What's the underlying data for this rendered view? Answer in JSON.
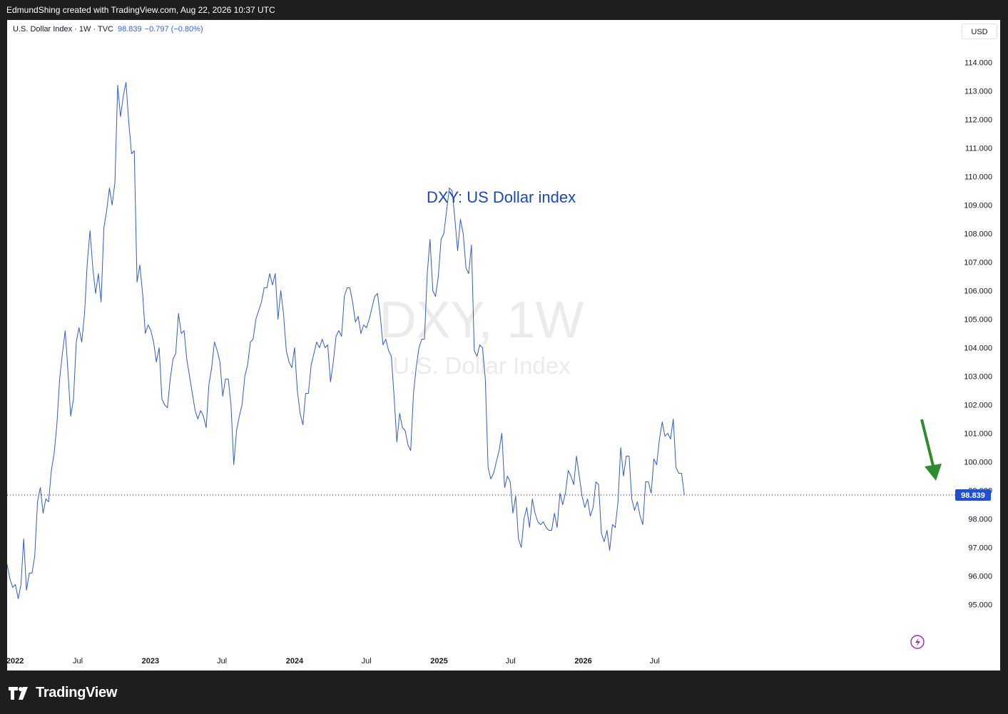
{
  "header": {
    "attribution": "EdmundShing created with TradingView.com, Aug 22, 2026 10:37 UTC"
  },
  "legend": {
    "symbol": "U.S. Dollar Index · 1W · TVC",
    "last": "98.839",
    "change": "−0.797 (−0.80%)"
  },
  "currency_button": "USD",
  "watermark": {
    "main": "DXY, 1W",
    "sub": "U.S. Dollar Index"
  },
  "annotation": {
    "text": "DXY: US Dollar index",
    "color": "#1a47c5"
  },
  "arrow": {
    "color": "#2e8b2e"
  },
  "branding": {
    "name": "TradingView"
  },
  "colors": {
    "line": "#2f5bd3",
    "last_badge": "#1c4fd6",
    "flash": "#9c27b0"
  },
  "chart_data": {
    "type": "line",
    "title": "U.S. Dollar Index",
    "timeframe": "1W",
    "x_start": "2022-01-03",
    "x_step_days": 7,
    "x_ticks": [
      {
        "label": "2022",
        "date": "2022-01-01",
        "bold": true
      },
      {
        "label": "Jul",
        "date": "2022-07-01",
        "bold": false
      },
      {
        "label": "2023",
        "date": "2023-01-01",
        "bold": true
      },
      {
        "label": "Jul",
        "date": "2023-07-01",
        "bold": false
      },
      {
        "label": "2024",
        "date": "2024-01-01",
        "bold": true
      },
      {
        "label": "Jul",
        "date": "2024-07-01",
        "bold": false
      },
      {
        "label": "2025",
        "date": "2025-01-01",
        "bold": true
      },
      {
        "label": "Jul",
        "date": "2025-07-01",
        "bold": false
      },
      {
        "label": "2026",
        "date": "2026-01-01",
        "bold": true
      },
      {
        "label": "Jul",
        "date": "2026-07-01",
        "bold": false
      }
    ],
    "y_ticks": [
      "95.000",
      "96.000",
      "97.000",
      "98.000",
      "99.000",
      "100.000",
      "101.000",
      "102.000",
      "103.000",
      "104.000",
      "105.000",
      "106.000",
      "107.000",
      "108.000",
      "109.000",
      "110.000",
      "111.000",
      "112.000",
      "113.000",
      "114.000"
    ],
    "y_range": [
      93.8,
      115.2
    ],
    "last_value": 98.839,
    "values": [
      96.4,
      95.9,
      95.6,
      95.7,
      95.2,
      95.7,
      97.3,
      95.5,
      96.1,
      96.1,
      96.7,
      98.6,
      99.1,
      98.2,
      98.7,
      98.6,
      99.7,
      100.3,
      101.3,
      102.9,
      103.8,
      104.6,
      103.2,
      101.6,
      102.2,
      104.2,
      104.7,
      104.2,
      105.2,
      107.0,
      108.1,
      106.8,
      105.9,
      106.6,
      105.6,
      108.2,
      108.8,
      109.6,
      109.0,
      109.8,
      113.2,
      112.1,
      112.8,
      113.3,
      111.9,
      110.8,
      110.9,
      106.3,
      106.9,
      105.9,
      104.5,
      104.8,
      104.6,
      104.2,
      103.5,
      104.0,
      102.2,
      102.0,
      101.9,
      102.9,
      103.6,
      103.8,
      105.2,
      104.5,
      104.6,
      103.6,
      103.0,
      102.4,
      101.8,
      101.5,
      101.8,
      101.6,
      101.2,
      102.7,
      103.3,
      104.2,
      103.9,
      103.5,
      102.3,
      102.9,
      102.9,
      102.0,
      99.9,
      101.1,
      101.6,
      102.0,
      103.0,
      103.4,
      104.2,
      104.3,
      105.0,
      105.3,
      105.6,
      106.1,
      106.1,
      106.6,
      106.2,
      106.6,
      105.0,
      106.0,
      105.2,
      103.9,
      103.5,
      103.3,
      104.0,
      102.5,
      101.7,
      101.3,
      102.4,
      102.4,
      103.4,
      103.8,
      104.2,
      104.0,
      104.3,
      104.0,
      104.1,
      102.8,
      103.5,
      104.4,
      104.6,
      104.4,
      105.8,
      106.1,
      106.1,
      105.6,
      104.9,
      105.1,
      104.5,
      104.8,
      104.7,
      105.0,
      105.4,
      105.8,
      105.9,
      105.1,
      104.1,
      104.3,
      103.9,
      103.7,
      102.3,
      100.7,
      101.7,
      101.2,
      101.1,
      100.6,
      100.4,
      102.4,
      103.3,
      104.0,
      104.3,
      104.3,
      106.6,
      107.8,
      106.0,
      105.8,
      106.5,
      107.8,
      108.0,
      108.8,
      109.6,
      109.5,
      108.5,
      107.4,
      108.5,
      108.0,
      106.8,
      106.6,
      107.6,
      103.9,
      103.7,
      104.1,
      104.0,
      102.9,
      99.8,
      99.4,
      99.6,
      100.0,
      100.4,
      101.0,
      99.1,
      99.5,
      99.3,
      98.2,
      98.8,
      97.3,
      97.0,
      98.0,
      98.4,
      97.7,
      98.7,
      98.2,
      97.9,
      97.8,
      97.9,
      97.7,
      97.6,
      97.6,
      98.2,
      97.7,
      98.9,
      98.5,
      98.9,
      99.7,
      99.5,
      99.2,
      100.2,
      99.5,
      98.8,
      98.4,
      98.7,
      98.1,
      98.4,
      99.3,
      99.2,
      97.5,
      97.2,
      97.6,
      96.9,
      97.8,
      97.7,
      98.6,
      100.5,
      99.5,
      100.2,
      100.2,
      98.7,
      98.3,
      98.6,
      98.1,
      97.8,
      99.3,
      99.3,
      98.9,
      100.1,
      99.9,
      100.8,
      101.4,
      100.9,
      101.0,
      100.8,
      101.5,
      99.8,
      99.6,
      99.6,
      98.839
    ]
  }
}
